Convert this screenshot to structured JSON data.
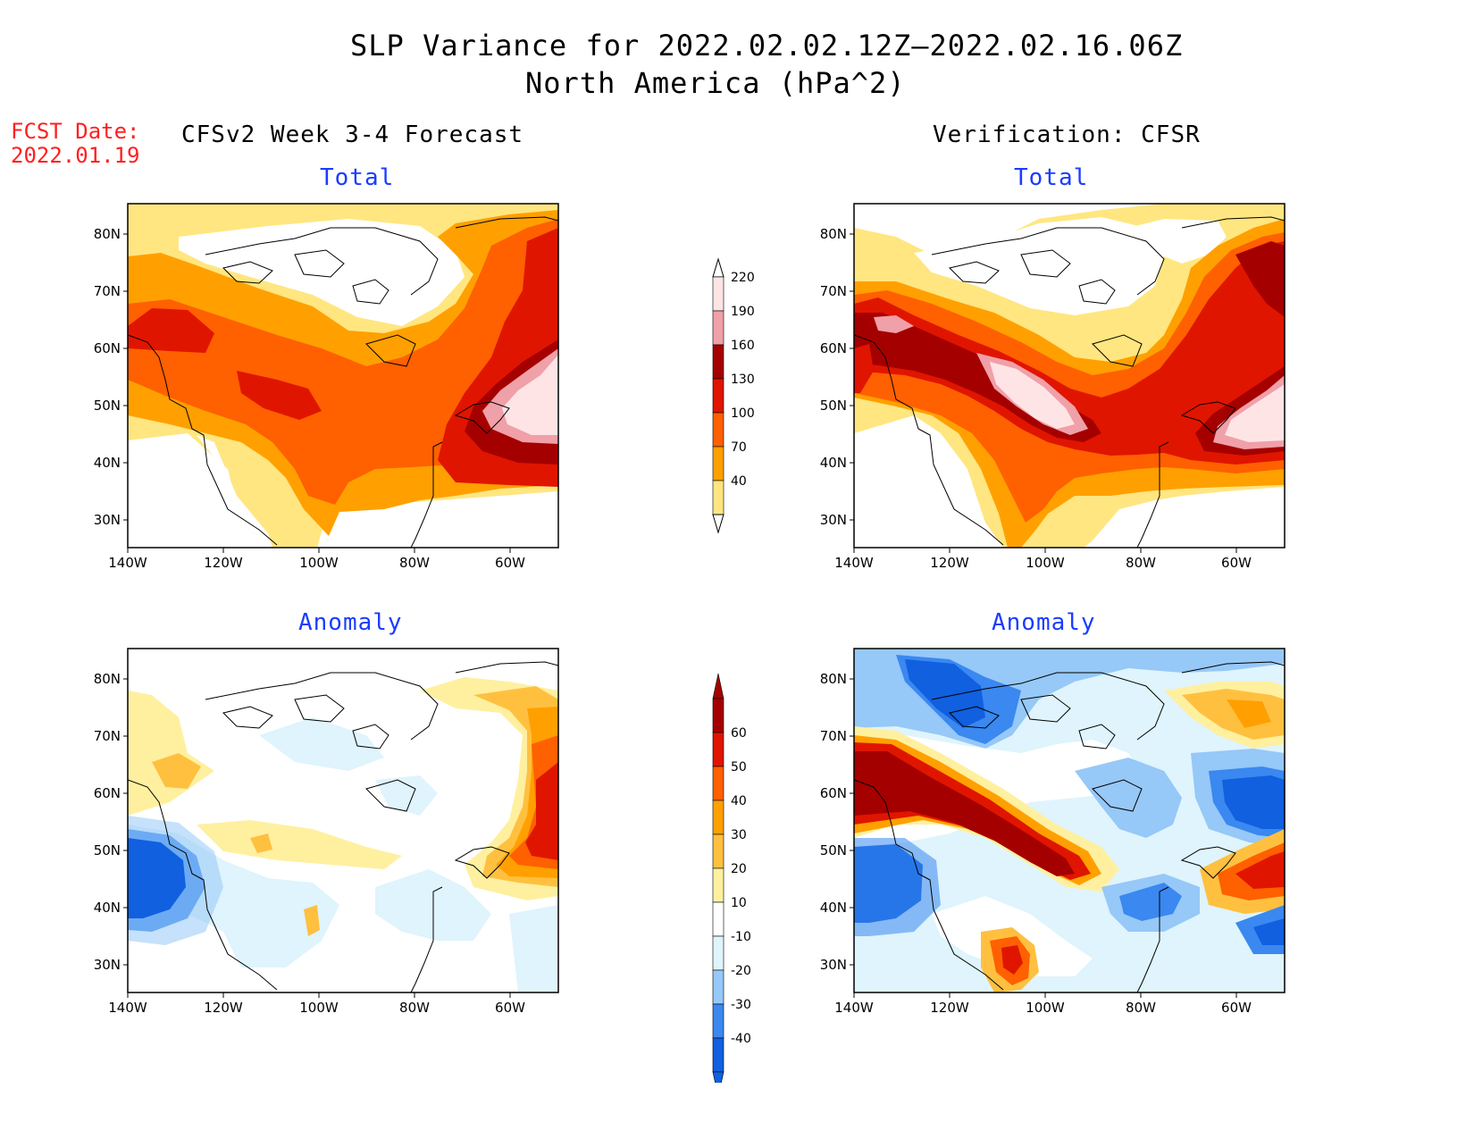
{
  "header": {
    "title_line1": "SLP Variance for 2022.02.02.12Z–2022.02.16.06Z",
    "title_line2": "North America (hPa^2)",
    "fcst_label": "FCST Date:",
    "fcst_date": "2022.01.19",
    "left_column_title": "CFSv2 Week 3-4 Forecast",
    "right_column_title": "Verification: CFSR"
  },
  "panels": {
    "top_left_title": "Total",
    "top_right_title": "Total",
    "bottom_left_title": "Anomaly",
    "bottom_right_title": "Anomaly"
  },
  "axes": {
    "lat_labels": [
      "80N",
      "70N",
      "60N",
      "50N",
      "40N",
      "30N"
    ],
    "lon_labels": [
      "140W",
      "120W",
      "100W",
      "80W",
      "60W"
    ]
  },
  "colorbars": {
    "total": {
      "labels": [
        "40",
        "70",
        "100",
        "130",
        "160",
        "190",
        "220"
      ],
      "colors": [
        "#ffe680",
        "#ffa000",
        "#ff6000",
        "#e01500",
        "#a50000",
        "#f0a0a8",
        "#ffe4e6"
      ]
    },
    "anomaly": {
      "labels": [
        "-40",
        "-30",
        "-20",
        "-10",
        "10",
        "20",
        "30",
        "40",
        "50",
        "60"
      ],
      "colors": [
        "#1060e0",
        "#3a88f0",
        "#96c8f8",
        "#dff4fc",
        "#ffffff",
        "#fff0a0",
        "#ffc040",
        "#ffa000",
        "#ff6000",
        "#e01500",
        "#a50000"
      ]
    }
  },
  "fields": {
    "total": {
      "white": "#ffffff",
      "c40": "#ffe680",
      "c70": "#ffa000",
      "c100": "#ff6000",
      "c130": "#e01500",
      "c160": "#a50000",
      "c190": "#f0a0a8",
      "c220": "#ffe4e6"
    }
  }
}
